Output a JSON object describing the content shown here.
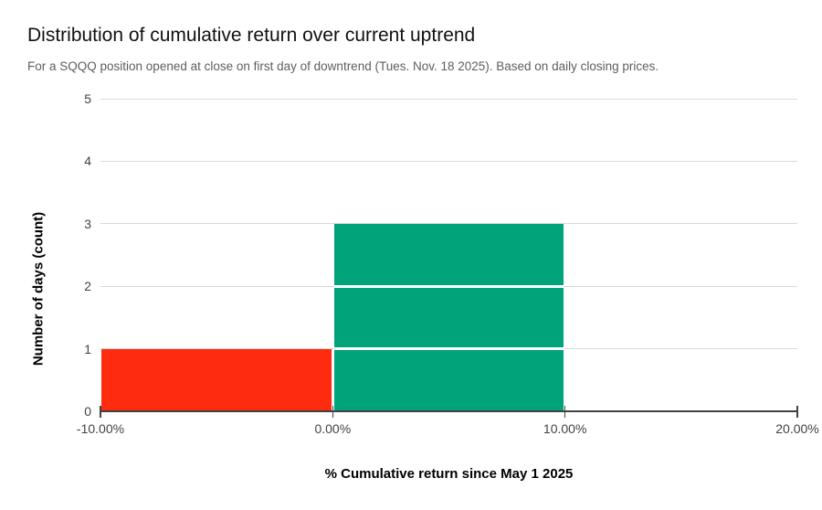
{
  "chart_data": {
    "type": "bar",
    "subtype": "histogram",
    "title": "Distribution of cumulative return over current uptrend",
    "subtitle": "For a SQQQ position opened at close on first day of downtrend (Tues. Nov. 18 2025). Based on daily closing prices.",
    "xlabel": "% Cumulative return since May 1 2025",
    "ylabel": "Number of days (count)",
    "xlim": [
      -10,
      20
    ],
    "ylim": [
      0,
      5
    ],
    "grid": true,
    "legend_position": "none",
    "x_ticks": [
      {
        "value": -10,
        "label": "-10.00%"
      },
      {
        "value": 0,
        "label": "0.00%"
      },
      {
        "value": 10,
        "label": "10.00%"
      },
      {
        "value": 20,
        "label": "20.00%"
      }
    ],
    "y_ticks": [
      0,
      1,
      2,
      3,
      4,
      5
    ],
    "bins": [
      {
        "x_start": -10,
        "x_end": 0,
        "count": 1,
        "color": "#ff2b0e"
      },
      {
        "x_start": 0,
        "x_end": 10,
        "count": 3,
        "color": "#00a37a"
      }
    ],
    "colors": {
      "negative_bin": "#ff2b0e",
      "positive_bin": "#00a37a",
      "gridline": "#d9d9d9",
      "axis_line": "#424242",
      "tick_text": "#424242",
      "title_text": "#111111",
      "subtitle_text": "#5e5e5e",
      "bar_separator": "#ffffff"
    }
  }
}
